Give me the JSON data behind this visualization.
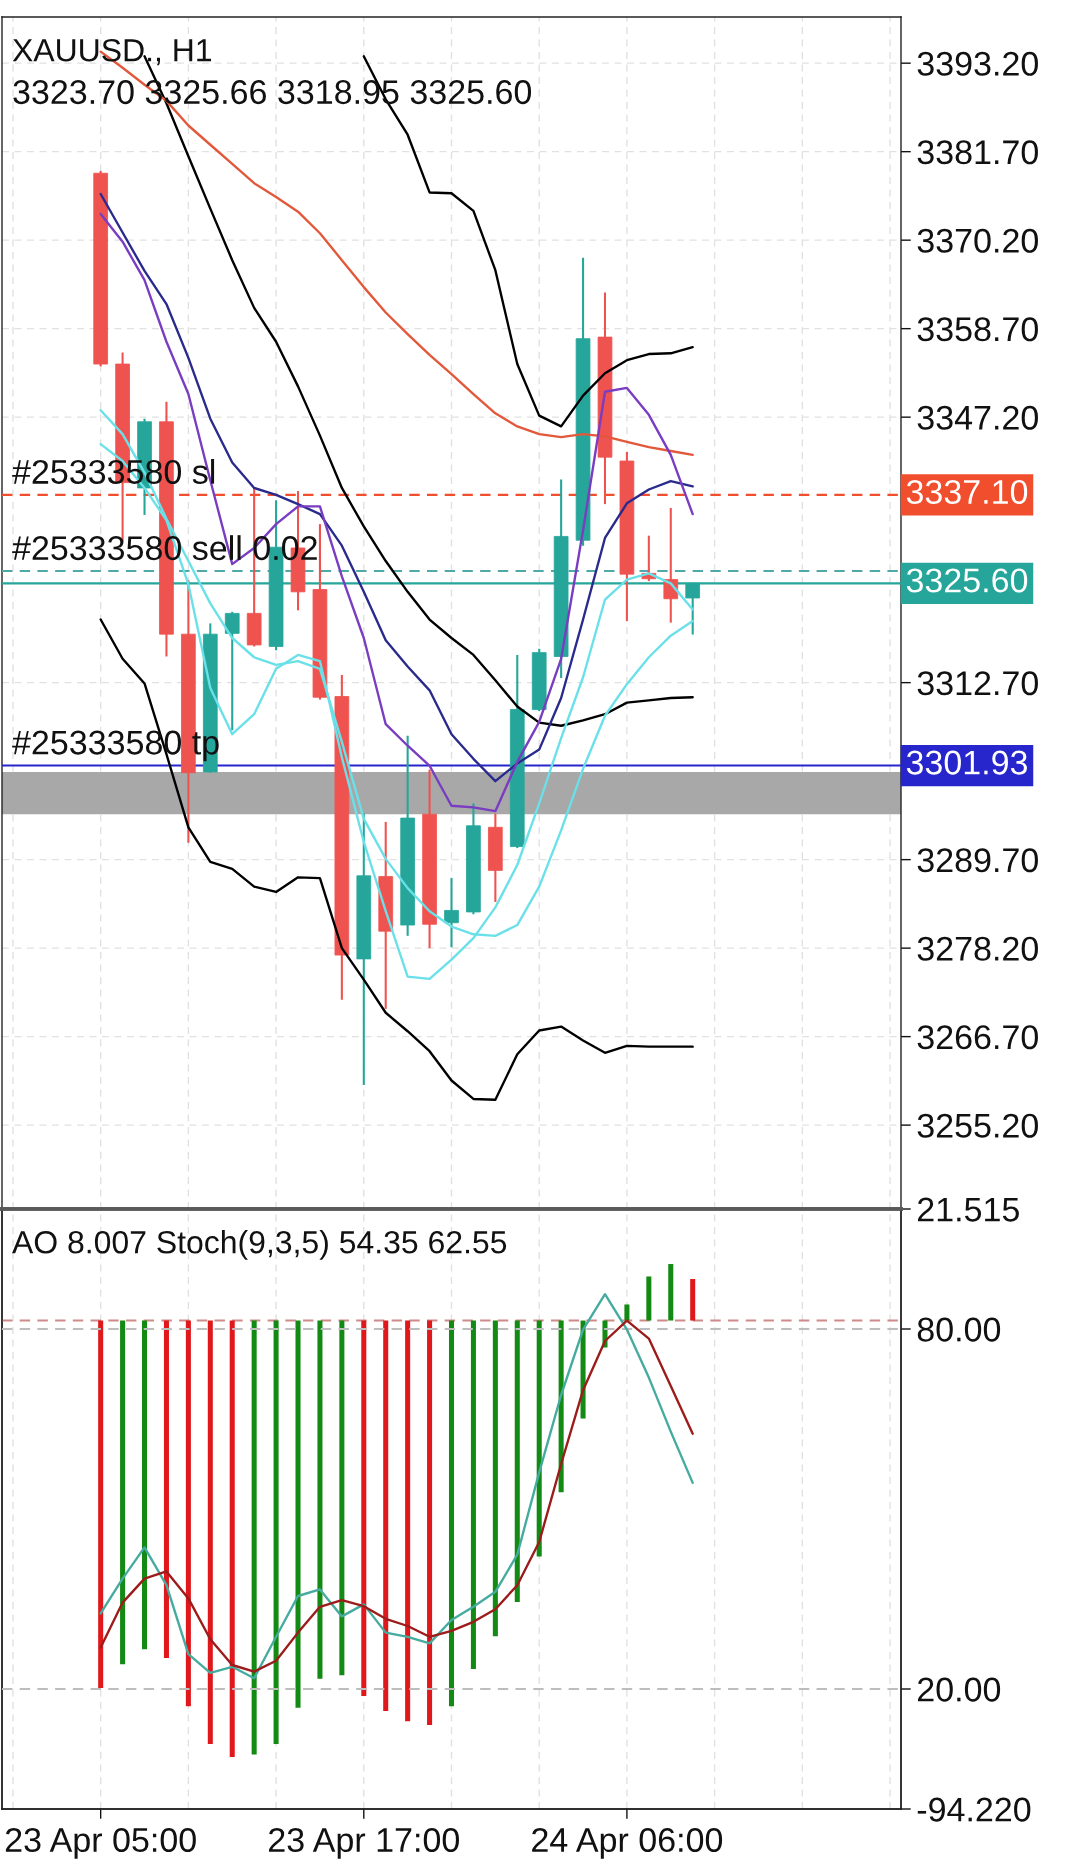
{
  "chart_data": [
    {
      "type": "candlestick",
      "title": "XAUUSD., H1",
      "subtitle": "3323.70 3325.66 3318.95 3325.60",
      "categories": [
        null,
        null,
        null,
        null,
        null,
        null,
        null,
        null,
        null,
        null,
        null,
        null,
        null,
        null,
        null,
        null,
        null,
        null,
        null,
        null,
        null,
        null,
        null,
        null,
        null,
        null,
        null,
        null,
        null,
        null,
        null,
        null,
        null,
        null,
        null,
        null,
        null,
        null,
        null,
        null,
        null
      ],
      "ohlc": [
        null,
        null,
        null,
        null,
        [
          3378.9,
          3379.2,
          3353.8,
          3354.1
        ],
        [
          3354.1,
          3355.6,
          3331.0,
          3338.7
        ],
        [
          3338.0,
          3347.0,
          3334.5,
          3346.6
        ],
        [
          3346.6,
          3349.2,
          3316.1,
          3319.0
        ],
        [
          3319.0,
          3326.0,
          3291.9,
          3301.0
        ],
        [
          3301.1,
          3320.4,
          3301.0,
          3319.0
        ],
        [
          3319.1,
          3321.9,
          3306.5,
          3321.7
        ],
        [
          3321.7,
          3338.0,
          3317.4,
          3317.6
        ],
        [
          3317.4,
          3336.4,
          3316.9,
          3330.3
        ],
        [
          3330.2,
          3337.6,
          3322.1,
          3324.5
        ],
        [
          3324.8,
          3333.3,
          3310.5,
          3310.8
        ],
        [
          3310.9,
          3313.7,
          3271.5,
          3277.3
        ],
        [
          3276.8,
          3295.7,
          3260.4,
          3287.6
        ],
        [
          3287.5,
          3294.6,
          3270.3,
          3280.4
        ],
        [
          3281.2,
          3305.8,
          3279.8,
          3295.1
        ],
        [
          3295.6,
          3301.4,
          3278.2,
          3281.3
        ],
        [
          3281.5,
          3287.3,
          3278.3,
          3283.1
        ],
        [
          3282.9,
          3297.0,
          3282.6,
          3294.1
        ],
        [
          3293.9,
          3295.7,
          3284.2,
          3288.3
        ],
        [
          3291.4,
          3316.3,
          3291.2,
          3309.2
        ],
        [
          3309.2,
          3317.1,
          3309.0,
          3316.6
        ],
        [
          3316.1,
          3339.1,
          3313.3,
          3331.7
        ],
        [
          3331.2,
          3367.9,
          3330.5,
          3357.4
        ],
        [
          3357.6,
          3363.4,
          3335.9,
          3342.0
        ],
        [
          3341.5,
          3342.7,
          3320.7,
          3326.8
        ],
        [
          3326.9,
          3331.8,
          3325.9,
          3326.2
        ],
        [
          3326.1,
          3335.4,
          3320.5,
          3323.6
        ],
        [
          3323.7,
          3325.66,
          3318.95,
          3325.6
        ],
        null,
        null,
        null,
        null,
        null,
        null,
        null,
        null,
        null
      ],
      "colors": [
        null,
        null,
        null,
        null,
        "#ef5350",
        "#ef5350",
        "#26a69a",
        "#ef5350",
        "#ef5350",
        "#26a69a",
        "#26a69a",
        "#ef5350",
        "#26a69a",
        "#ef5350",
        "#ef5350",
        "#ef5350",
        "#26a69a",
        "#ef5350",
        "#26a69a",
        "#ef5350",
        "#26a69a",
        "#26a69a",
        "#ef5350",
        "#26a69a",
        "#26a69a",
        "#26a69a",
        "#26a69a",
        "#ef5350",
        "#ef5350",
        "#ef5350",
        "#ef5350",
        "#26a69a",
        null,
        null,
        null,
        null,
        null,
        null,
        null,
        null,
        null
      ],
      "series": [
        {
          "type": "line",
          "color": "#000000",
          "values": [
            null,
            null,
            null,
            null,
            null,
            null,
            null,
            null,
            null,
            null,
            null,
            null,
            null,
            null,
            null,
            null,
            3394.1,
            3388.5,
            3383.9,
            3376.4,
            3376.3,
            3374.0,
            3366.3,
            3354.1,
            3347.4,
            3346.0,
            3350.0,
            3352.9,
            3354.6,
            3355.4,
            3355.5,
            3356.3,
            null,
            null,
            null,
            null,
            null,
            null,
            null,
            null,
            null
          ]
        },
        {
          "type": "line",
          "color": "#000000",
          "values": [
            null,
            null,
            null,
            null,
            null,
            null,
            3394.1,
            3388.0,
            3381.1,
            3374.3,
            3367.6,
            3361.4,
            3357.0,
            3351.2,
            3344.8,
            3338.0,
            3333.0,
            3328.5,
            3324.5,
            3320.9,
            3318.5,
            3316.3,
            3313.0,
            3309.6,
            3307.5,
            3307.1,
            3307.8,
            3308.6,
            3310.1,
            3310.4,
            3310.7,
            3310.8,
            null,
            null,
            null,
            null,
            null,
            null,
            null,
            null,
            null
          ]
        },
        {
          "type": "line",
          "color": "#000000",
          "values": [
            null,
            null,
            null,
            null,
            3320.9,
            3315.8,
            3312.6,
            3303.4,
            3293.9,
            3289.4,
            3288.5,
            3286.2,
            3285.5,
            3287.4,
            3287.3,
            3278.2,
            3274.1,
            3269.8,
            3267.4,
            3264.8,
            3261.0,
            3258.6,
            3258.5,
            3264.4,
            3267.5,
            3268.0,
            3266.2,
            3264.6,
            3265.5,
            3265.4,
            3265.4,
            3265.4,
            null,
            null,
            null,
            null,
            null,
            null,
            null,
            null,
            null
          ]
        },
        {
          "type": "line",
          "color": "#e2583a",
          "values": [
            null,
            null,
            null,
            null,
            3394.7,
            3392.6,
            3390.4,
            3388.3,
            3385.1,
            3382.6,
            3380.1,
            3377.6,
            3375.8,
            3373.9,
            3371.1,
            3367.6,
            3364.1,
            3360.8,
            3358.0,
            3355.3,
            3352.8,
            3350.2,
            3347.7,
            3346.0,
            3345.0,
            3344.6,
            3345.0,
            3344.7,
            3344.0,
            3343.3,
            3342.8,
            3342.3,
            null,
            null,
            null,
            null,
            null,
            null,
            null,
            null,
            null
          ]
        },
        {
          "type": "line",
          "color": "#2a2a8c",
          "values": [
            null,
            null,
            null,
            null,
            3376.2,
            3371.2,
            3366.2,
            3361.9,
            3354.9,
            3347.0,
            3341.3,
            3338.0,
            3337.1,
            3335.9,
            3334.6,
            3330.5,
            3324.5,
            3318.2,
            3314.8,
            3311.7,
            3306.0,
            3302.8,
            3299.9,
            3302.2,
            3304.0,
            3310.7,
            3320.9,
            3331.5,
            3336.0,
            3337.8,
            3338.9,
            3338.2,
            null,
            null,
            null,
            null,
            null,
            null,
            null,
            null,
            null
          ]
        },
        {
          "type": "line",
          "color": "#7a3cc0",
          "values": [
            null,
            null,
            null,
            null,
            3373.6,
            3370.0,
            3365.0,
            3357.0,
            3350.2,
            3339.0,
            3328.1,
            3330.2,
            3333.3,
            3335.6,
            3335.6,
            3326.5,
            3318.5,
            3307.3,
            3304.5,
            3301.9,
            3296.7,
            3296.5,
            3296.0,
            3302.4,
            3307.6,
            3315.8,
            3332.5,
            3350.5,
            3351.0,
            3347.5,
            3342.3,
            3334.6,
            null,
            null,
            null,
            null,
            null,
            null,
            null,
            null,
            null
          ]
        },
        {
          "type": "line",
          "color": "#6ae0e8",
          "values": [
            null,
            null,
            null,
            null,
            3343.7,
            3341.5,
            3338.0,
            3333.8,
            3325.5,
            3312.0,
            3306.0,
            3308.6,
            3314.5,
            3316.3,
            3315.5,
            3303.0,
            3292.0,
            3283.0,
            3274.5,
            3274.2,
            3276.7,
            3279.5,
            3283.5,
            3289.0,
            3297.0,
            3305.5,
            3313.4,
            3323.5,
            3326.1,
            3326.9,
            3325.6,
            3322.2,
            null,
            null,
            null,
            null,
            null,
            null,
            null,
            null,
            null
          ]
        },
        {
          "type": "line",
          "color": "#6ae0e8",
          "values": [
            null,
            null,
            null,
            null,
            3348.1,
            3345.0,
            3340.0,
            3334.0,
            3328.5,
            3323.0,
            3318.5,
            3316.0,
            3315.0,
            3315.5,
            3314.5,
            3305.0,
            3295.0,
            3289.8,
            3286.0,
            3283.0,
            3281.0,
            3280.0,
            3279.8,
            3281.2,
            3286.2,
            3293.5,
            3301.5,
            3308.4,
            3312.5,
            3316.0,
            3318.8,
            3320.7,
            null,
            null,
            null,
            null,
            null,
            null,
            null,
            null,
            null
          ]
        }
      ],
      "ylim": [
        3244.3,
        3399.2
      ],
      "yticks": [
        {
          "value": 3393.2,
          "label": "3393.20"
        },
        {
          "value": 3381.7,
          "label": "3381.70"
        },
        {
          "value": 3370.2,
          "label": "3370.20"
        },
        {
          "value": 3358.7,
          "label": "3358.70"
        },
        {
          "value": 3347.2,
          "label": "3347.20"
        },
        {
          "value": 3312.7,
          "label": "3312.70"
        },
        {
          "value": 3289.7,
          "label": "3289.70"
        },
        {
          "value": 3278.2,
          "label": "3278.20"
        },
        {
          "value": 3266.7,
          "label": "3266.70"
        },
        {
          "value": 3255.2,
          "label": "3255.20"
        }
      ],
      "grid": true,
      "tick_labels": "y",
      "ref_lines": [
        {
          "axis": "y",
          "value": 3337.1,
          "label": "3337.10",
          "color": "#f04e2c",
          "line_style": "dashed"
        },
        {
          "axis": "y",
          "value": 3327.2,
          "color": "#4fa9a9",
          "line_style": "dashed"
        },
        {
          "axis": "y",
          "value": 3325.6,
          "label": "3325.60",
          "color": "#26a69a",
          "line_style": "solid"
        },
        {
          "axis": "y",
          "value": 3301.93,
          "label": "3301.93",
          "color": "#2626cc",
          "line_style": "solid"
        }
      ],
      "bands": [
        {
          "axis": "y",
          "from": 3295.6,
          "to": 3301.1,
          "color": "#a8a8a8"
        }
      ],
      "annotations": [
        {
          "text": "#25333580 sl",
          "y": 3337.1
        },
        {
          "text": "#25333580 sell 0.02",
          "y": 3327.2
        },
        {
          "text": "#25333580 tp",
          "y": 3301.93
        }
      ]
    },
    {
      "type": "bar",
      "title": "AO 8.007 Stoch(9,3,5) 54.35 62.55",
      "categories": [
        null,
        null,
        null,
        null,
        "23 Apr 05:00",
        null,
        null,
        null,
        null,
        null,
        null,
        null,
        null,
        null,
        null,
        null,
        "23 Apr 17:00",
        null,
        null,
        null,
        null,
        null,
        null,
        null,
        null,
        null,
        null,
        null,
        "24 Apr 06:00",
        null,
        null,
        null,
        null,
        null,
        null,
        null,
        null,
        null,
        null,
        null,
        null
      ],
      "series": [
        {
          "type": "bar",
          "colors": [
            null,
            null,
            null,
            null,
            "#e0181c",
            "#138a13",
            "#138a13",
            "#e0181c",
            "#e0181c",
            "#e0181c",
            "#e0181c",
            "#138a13",
            "#138a13",
            "#138a13",
            "#138a13",
            "#138a13",
            "#e0181c",
            "#e0181c",
            "#e0181c",
            "#e0181c",
            "#138a13",
            "#138a13",
            "#138a13",
            "#138a13",
            "#138a13",
            "#138a13",
            "#138a13",
            "#138a13",
            "#138a13",
            "#138a13",
            "#138a13",
            "#e0181c",
            null,
            null,
            null,
            null,
            null,
            null,
            null,
            null,
            null
          ],
          "values": [
            null,
            null,
            null,
            null,
            -70.9,
            -66.3,
            -63.4,
            -65.1,
            -74.4,
            -81.7,
            -84.2,
            -83.7,
            -81.7,
            -74.7,
            -69.1,
            -68.4,
            -72.4,
            -75.3,
            -77.3,
            -78.0,
            -74.4,
            -67.2,
            -60.9,
            -54.3,
            -45.5,
            -33.1,
            -18.9,
            -5.2,
            3.1,
            8.5,
            10.9,
            8.007,
            null,
            null,
            null,
            null,
            null,
            null,
            null,
            null,
            null
          ]
        },
        {
          "type": "line",
          "axis": "y2",
          "color": "#45ab9f",
          "values": [
            null,
            null,
            null,
            null,
            32.6,
            38.4,
            43.6,
            37.3,
            25.8,
            22.7,
            23.7,
            21.8,
            28.7,
            35.5,
            36.6,
            32.1,
            34.1,
            29.4,
            28.7,
            27.6,
            31.5,
            33.7,
            36.2,
            42.4,
            56.1,
            69.0,
            79.9,
            85.8,
            79.9,
            71.9,
            62.9,
            54.35,
            null,
            null,
            null,
            null,
            null,
            null,
            null,
            null,
            null
          ]
        },
        {
          "type": "line",
          "axis": "y2",
          "color": "#9c1b1b",
          "values": [
            null,
            null,
            null,
            null,
            26.9,
            34.4,
            38.4,
            39.6,
            35.1,
            28.3,
            24.0,
            22.9,
            24.7,
            29.4,
            33.7,
            34.8,
            33.8,
            31.7,
            30.5,
            28.7,
            29.7,
            31.2,
            33.3,
            37.3,
            44.5,
            57.5,
            69.8,
            78.0,
            81.4,
            78.4,
            70.5,
            62.55,
            null,
            null,
            null,
            null,
            null,
            null,
            null,
            null,
            null
          ]
        }
      ],
      "ylim": [
        -94.22,
        21.515
      ],
      "yticks": [
        21.515,
        {
          "value": -94.22,
          "label": "-94.220"
        }
      ],
      "y2lim": [
        0,
        100
      ],
      "y2ticks": [
        {
          "value": 80,
          "label": "80.00"
        },
        {
          "value": 20,
          "label": "20.00"
        }
      ],
      "grid": "x",
      "ref_lines": [
        {
          "axis": "y",
          "value": 0,
          "color": "#cf8a8a",
          "line_style": "dashed"
        },
        {
          "axis": "y2",
          "value": 80,
          "color": "#bdbdbd",
          "line_style": "dashed"
        },
        {
          "axis": "y2",
          "value": 20,
          "color": "#bdbdbd",
          "line_style": "dashed"
        }
      ]
    }
  ]
}
